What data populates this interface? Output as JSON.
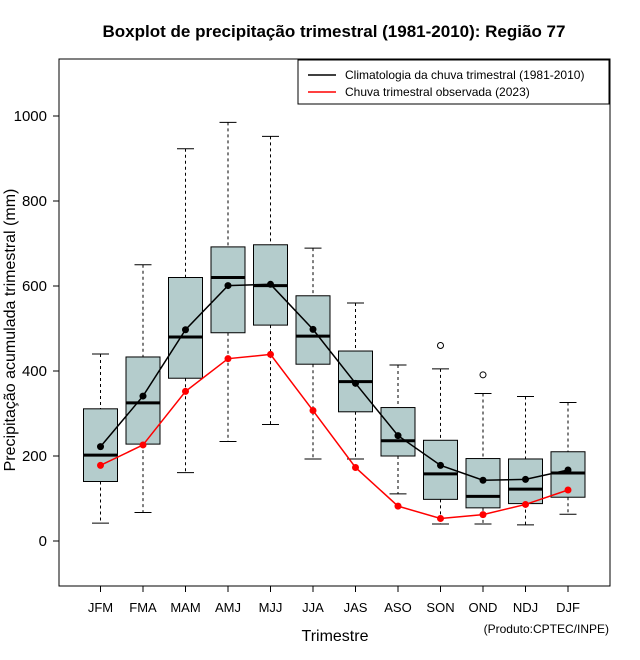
{
  "chart_data": {
    "type": "boxplot",
    "title": "Boxplot de precipitação trimestral (1981-2010): Região 77",
    "xlabel": "Trimestre",
    "ylabel": "Precipitação acumulada trimestral (mm)",
    "credit": "(Produto:CPTEC/INPE)",
    "ylim": [
      -110,
      1110
    ],
    "yticks": [
      0,
      200,
      400,
      600,
      800,
      1000
    ],
    "ytick_labels": [
      "0",
      "200",
      "400",
      "600",
      "800",
      "1000"
    ],
    "categories": [
      "JFM",
      "FMA",
      "MAM",
      "AMJ",
      "MJJ",
      "JJA",
      "JAS",
      "ASO",
      "SON",
      "OND",
      "NDJ",
      "DJF"
    ],
    "boxes": [
      {
        "min": 42,
        "q1": 140,
        "median": 202,
        "q3": 311,
        "max": 440,
        "outliers": []
      },
      {
        "min": 67,
        "q1": 228,
        "median": 325,
        "q3": 433,
        "max": 650,
        "outliers": []
      },
      {
        "min": 161,
        "q1": 383,
        "median": 480,
        "q3": 620,
        "max": 923,
        "outliers": []
      },
      {
        "min": 234,
        "q1": 490,
        "median": 620,
        "q3": 692,
        "max": 985,
        "outliers": []
      },
      {
        "min": 274,
        "q1": 508,
        "median": 601,
        "q3": 697,
        "max": 952,
        "outliers": []
      },
      {
        "min": 193,
        "q1": 416,
        "median": 482,
        "q3": 577,
        "max": 689,
        "outliers": []
      },
      {
        "min": 193,
        "q1": 304,
        "median": 375,
        "q3": 447,
        "max": 560,
        "outliers": []
      },
      {
        "min": 111,
        "q1": 200,
        "median": 236,
        "q3": 314,
        "max": 414,
        "outliers": []
      },
      {
        "min": 40,
        "q1": 98,
        "median": 158,
        "q3": 237,
        "max": 405,
        "outliers": [
          460
        ]
      },
      {
        "min": 40,
        "q1": 78,
        "median": 105,
        "q3": 194,
        "max": 347,
        "outliers": [
          391
        ]
      },
      {
        "min": 38,
        "q1": 88,
        "median": 122,
        "q3": 193,
        "max": 340,
        "outliers": []
      },
      {
        "min": 63,
        "q1": 103,
        "median": 160,
        "q3": 210,
        "max": 326,
        "outliers": []
      }
    ],
    "box_color": "#b4cccc",
    "series": [
      {
        "name": "Climatologia da chuva trimestral (1981-2010)",
        "color": "#000000",
        "values": [
          222,
          341,
          497,
          601,
          604,
          498,
          371,
          248,
          178,
          143,
          145,
          167
        ]
      },
      {
        "name": "Chuva trimestral observada (2023)",
        "color": "#ff0000",
        "values": [
          178,
          226,
          352,
          429,
          439,
          307,
          173,
          82,
          53,
          62,
          86,
          120
        ]
      }
    ],
    "legend_position": "top-right"
  }
}
